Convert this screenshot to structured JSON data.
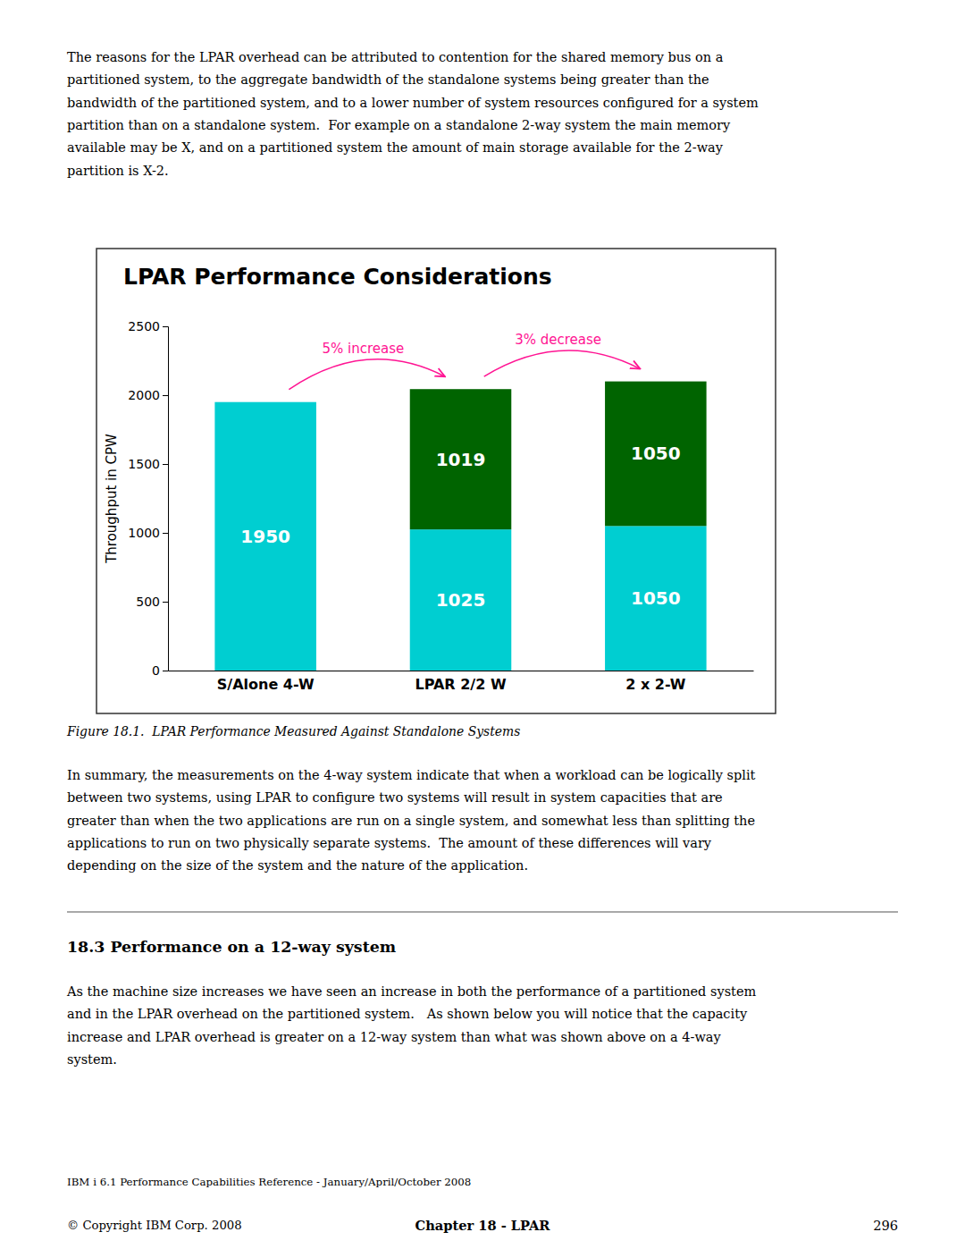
{
  "chart_data": {
    "type": "bar",
    "title": "LPAR Performance Considerations",
    "ylabel": "Throughput in CPW",
    "categories": [
      "S/Alone 4-W",
      "LPAR 2/2 W",
      "2 x 2-W"
    ],
    "series": [
      {
        "color": "#00CED1",
        "values": [
          1950,
          1025,
          1050
        ]
      },
      {
        "color": "#006400",
        "values": [
          0,
          1019,
          1050
        ]
      }
    ],
    "stacked": true,
    "data_labels": true,
    "grid": false,
    "ylim": [
      0,
      2500
    ],
    "yticks": [
      0,
      500,
      1000,
      1500,
      2000,
      2500
    ],
    "annotations": [
      {
        "text": "5% increase"
      },
      {
        "text": "3% decrease"
      }
    ]
  },
  "page": {
    "para1": "The reasons for the LPAR overhead can be attributed to contention for the shared memory bus on a\npartitioned system, to the aggregate bandwidth of the standalone systems being greater than the\nbandwidth of the partitioned system, and to a lower number of system resources configured for a system\npartition than on a standalone system.  For example on a standalone 2-way system the main memory\navailable may be X, and on a partitioned system the amount of main storage available for the 2-way\npartition is X-2.",
    "figure_caption": "Figure 18.1.  LPAR Performance Measured Against Standalone Systems",
    "para2": "In summary, the measurements on the 4-way system indicate that when a workload can be logically split\nbetween two systems, using LPAR to configure two systems will result in system capacities that are\ngreater than when the two applications are run on a single system, and somewhat less than splitting the\napplications to run on two physically separate systems.  The amount of these differences will vary\ndepending on the size of the system and the nature of the application.",
    "section_header": "18.3 Performance on a 12-way system",
    "para3": "As the machine size increases we have seen an increase in both the performance of a partitioned system\nand in the LPAR overhead on the partitioned system.   As shown below you will notice that the capacity\nincrease and LPAR overhead is greater on a 12-way system than what was shown above on a 4-way\nsystem.",
    "footer_left": "IBM i 6.1 Performance Capabilities Reference - January/April/October 2008",
    "footer_copyright": "© Copyright IBM Corp. 2008",
    "footer_center": "Chapter 18 - LPAR",
    "footer_right": "296"
  }
}
